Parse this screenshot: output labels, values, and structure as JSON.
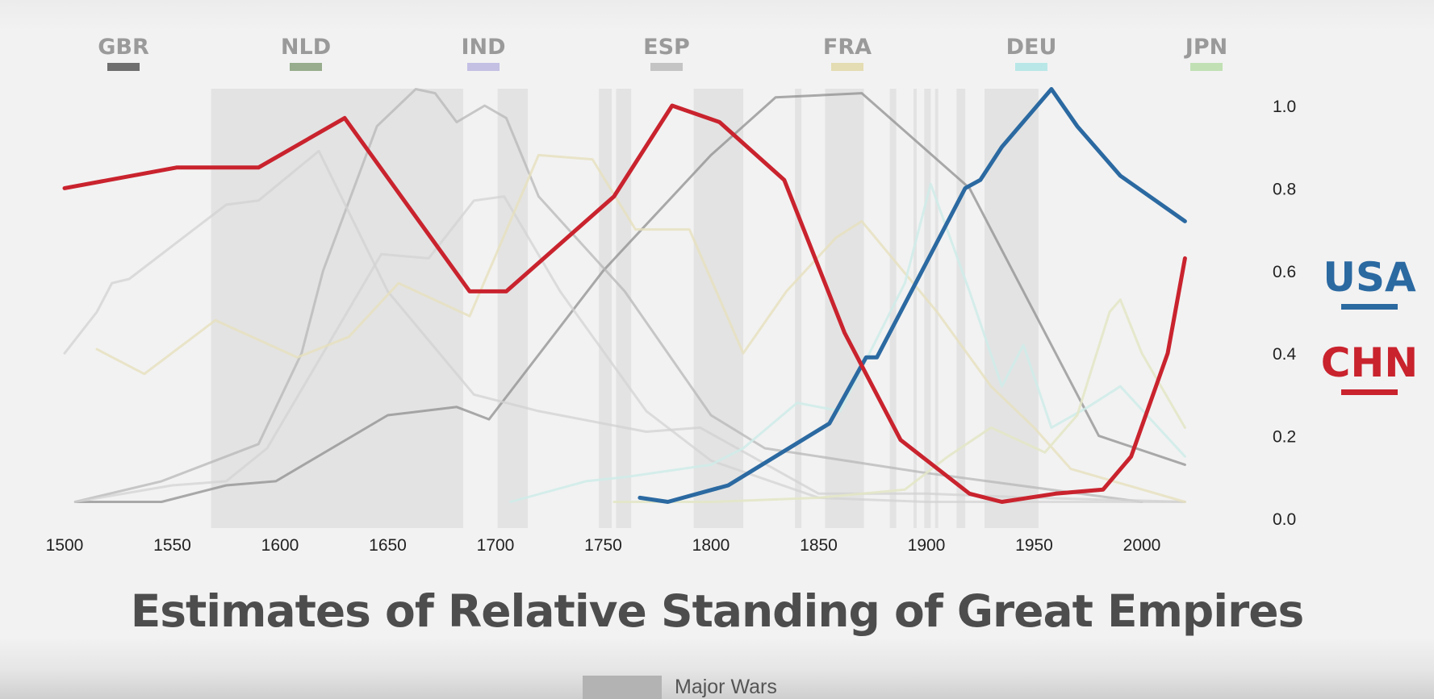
{
  "chart_data": {
    "type": "line",
    "title": "Estimates of Relative Standing of Great Empires",
    "x_ticks": [
      1500,
      1550,
      1600,
      1650,
      1700,
      1750,
      1800,
      1850,
      1900,
      1950,
      2000
    ],
    "y_ticks": [
      "0.0",
      "0.2",
      "0.4",
      "0.6",
      "0.8",
      "1.0"
    ],
    "xlim": [
      1500,
      2020
    ],
    "ylim": [
      0,
      1.0
    ],
    "y_axis_side": "right",
    "grid": false,
    "legend_placement": "top",
    "legend": [
      {
        "code": "GBR",
        "color": "#6f6f6f"
      },
      {
        "code": "NLD",
        "color": "#97ad8d"
      },
      {
        "code": "IND",
        "color": "#c3c0e4"
      },
      {
        "code": "ESP",
        "color": "#c4c4c4"
      },
      {
        "code": "FRA",
        "color": "#e4dcb2"
      },
      {
        "code": "DEU",
        "color": "#b9e7e7"
      },
      {
        "code": "JPN",
        "color": "#c1e1b4"
      }
    ],
    "focus_labels": [
      {
        "code": "USA",
        "color": "#2b69a1"
      },
      {
        "code": "CHN",
        "color": "#c9232e"
      }
    ],
    "wars_legend_label": "Major Wars",
    "war_periods": [
      [
        1568,
        1685
      ],
      [
        1701,
        1715
      ],
      [
        1748,
        1754
      ],
      [
        1756,
        1763
      ],
      [
        1792,
        1815
      ],
      [
        1839,
        1842
      ],
      [
        1853,
        1871
      ],
      [
        1883,
        1886
      ],
      [
        1894,
        1895
      ],
      [
        1899,
        1902
      ],
      [
        1904,
        1905
      ],
      [
        1914,
        1918
      ],
      [
        1927,
        1952
      ]
    ],
    "series": [
      {
        "name": "GBR",
        "color": "#8f8f8f",
        "opacity": 0.75,
        "width": 3,
        "x": [
          1505,
          1545,
          1575,
          1598,
          1650,
          1682,
          1697,
          1750,
          1800,
          1830,
          1870,
          1920,
          1980,
          2020
        ],
        "y": [
          0.04,
          0.04,
          0.08,
          0.09,
          0.25,
          0.27,
          0.24,
          0.6,
          0.88,
          1.02,
          1.03,
          0.8,
          0.2,
          0.13
        ]
      },
      {
        "name": "NLD",
        "color": "#b3b3b3",
        "opacity": 0.7,
        "width": 3,
        "x": [
          1505,
          1545,
          1590,
          1610,
          1620,
          1645,
          1663,
          1672,
          1682,
          1695,
          1705,
          1720,
          1760,
          1800,
          1825,
          1850,
          1900,
          2000
        ],
        "y": [
          0.04,
          0.09,
          0.18,
          0.4,
          0.6,
          0.95,
          1.04,
          1.03,
          0.96,
          1.0,
          0.97,
          0.78,
          0.55,
          0.25,
          0.17,
          0.15,
          0.11,
          0.04
        ]
      },
      {
        "name": "IND",
        "color": "#d2d2d2",
        "opacity": 0.7,
        "width": 3,
        "x": [
          1505,
          1550,
          1575,
          1594,
          1647,
          1669,
          1690,
          1704,
          1730,
          1770,
          1800,
          1850,
          1900,
          2020
        ],
        "y": [
          0.04,
          0.08,
          0.09,
          0.17,
          0.64,
          0.63,
          0.77,
          0.78,
          0.55,
          0.26,
          0.14,
          0.05,
          0.04,
          0.04
        ]
      },
      {
        "name": "ESP",
        "color": "#d2d2d2",
        "opacity": 0.75,
        "width": 3,
        "x": [
          1500,
          1515,
          1522,
          1530,
          1575,
          1590,
          1618,
          1650,
          1690,
          1720,
          1770,
          1795,
          1850,
          1900,
          1950,
          2020
        ],
        "y": [
          0.4,
          0.5,
          0.57,
          0.58,
          0.76,
          0.77,
          0.89,
          0.55,
          0.3,
          0.26,
          0.21,
          0.22,
          0.06,
          0.06,
          0.05,
          0.04
        ]
      },
      {
        "name": "FRA",
        "color": "#e6e0bd",
        "opacity": 0.8,
        "width": 3,
        "x": [
          1515,
          1537,
          1570,
          1608,
          1632,
          1655,
          1688,
          1720,
          1745,
          1765,
          1790,
          1815,
          1835,
          1858,
          1870,
          1905,
          1930,
          1950,
          1967,
          2020
        ],
        "y": [
          0.41,
          0.35,
          0.48,
          0.39,
          0.44,
          0.57,
          0.49,
          0.88,
          0.87,
          0.7,
          0.7,
          0.4,
          0.55,
          0.68,
          0.72,
          0.5,
          0.32,
          0.22,
          0.12,
          0.04
        ]
      },
      {
        "name": "DEU",
        "color": "#cfece9",
        "opacity": 0.85,
        "width": 3,
        "x": [
          1707,
          1742,
          1760,
          1800,
          1815,
          1840,
          1860,
          1890,
          1902,
          1920,
          1935,
          1945,
          1958,
          1975,
          1990,
          2020
        ],
        "y": [
          0.04,
          0.09,
          0.1,
          0.13,
          0.17,
          0.28,
          0.26,
          0.57,
          0.81,
          0.55,
          0.32,
          0.42,
          0.22,
          0.27,
          0.32,
          0.15
        ]
      },
      {
        "name": "JPN",
        "color": "#e4e6c6",
        "opacity": 0.85,
        "width": 3,
        "x": [
          1755,
          1800,
          1850,
          1890,
          1910,
          1930,
          1955,
          1970,
          1985,
          1990,
          2000,
          2020
        ],
        "y": [
          0.04,
          0.04,
          0.05,
          0.07,
          0.15,
          0.22,
          0.16,
          0.25,
          0.5,
          0.53,
          0.4,
          0.22
        ]
      },
      {
        "name": "USA",
        "color": "#2b69a1",
        "opacity": 1,
        "width": 5,
        "x": [
          1767,
          1780,
          1808,
          1855,
          1872,
          1877,
          1888,
          1918,
          1925,
          1935,
          1958,
          1970,
          1990,
          2020
        ],
        "y": [
          0.05,
          0.04,
          0.08,
          0.23,
          0.39,
          0.39,
          0.5,
          0.8,
          0.82,
          0.9,
          1.04,
          0.95,
          0.83,
          0.72
        ]
      },
      {
        "name": "CHN",
        "color": "#c9232e",
        "opacity": 1,
        "width": 5,
        "x": [
          1500,
          1552,
          1590,
          1630,
          1688,
          1705,
          1755,
          1782,
          1804,
          1834,
          1862,
          1888,
          1920,
          1935,
          1960,
          1982,
          1995,
          2012,
          2020
        ],
        "y": [
          0.8,
          0.85,
          0.85,
          0.97,
          0.55,
          0.55,
          0.78,
          1.0,
          0.96,
          0.82,
          0.45,
          0.19,
          0.06,
          0.04,
          0.06,
          0.07,
          0.15,
          0.4,
          0.63
        ]
      }
    ]
  }
}
